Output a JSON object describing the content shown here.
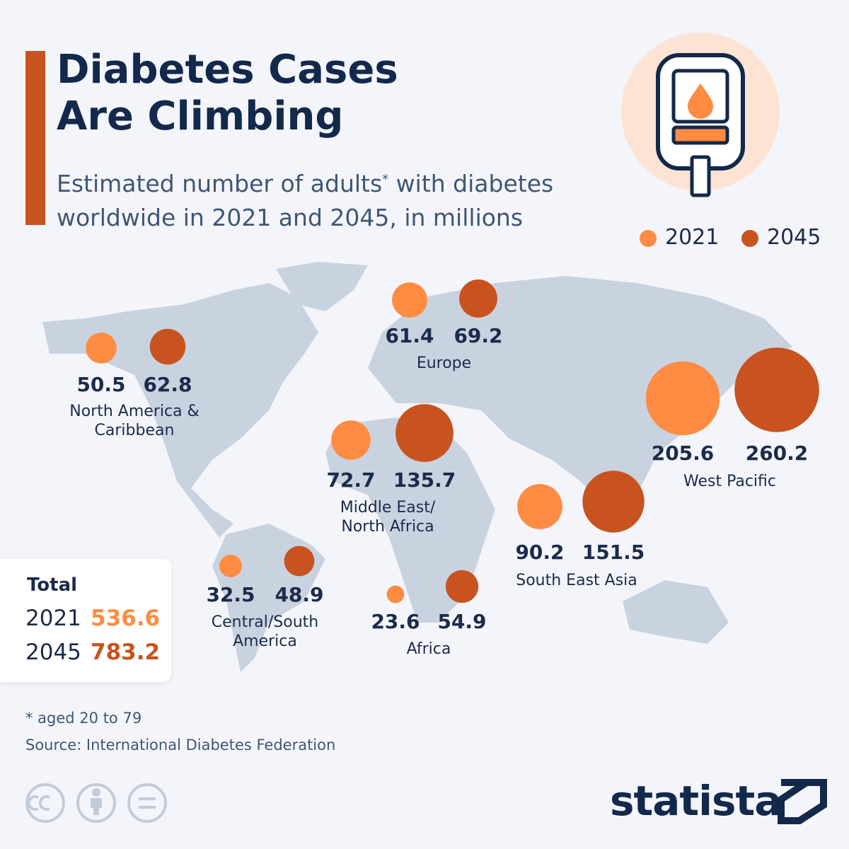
{
  "chart_data": {
    "type": "bubble",
    "title": "Diabetes Cases Are Climbing",
    "subtitle_before": "Estimated number of adults",
    "subtitle_mark": "*",
    "subtitle_after": "with diabetes worldwide in 2021 and 2045, in millions",
    "categories": [
      "North America & Caribbean",
      "Europe",
      "Middle East/ North Africa",
      "West Pacific",
      "South East Asia",
      "Central/South America",
      "Africa"
    ],
    "series": [
      {
        "name": "2021",
        "color": "#ff8c42",
        "values": [
          50.5,
          61.4,
          72.7,
          205.6,
          90.2,
          32.5,
          23.6
        ]
      },
      {
        "name": "2045",
        "color": "#c8531f",
        "values": [
          62.8,
          69.2,
          135.7,
          260.2,
          151.5,
          48.9,
          54.9
        ]
      }
    ],
    "totals": {
      "title": "Total",
      "values": [
        536.6,
        783.2
      ]
    },
    "footnote": "* aged 20 to 79",
    "source": "Source: International Diabetes Federation",
    "brand": "statista"
  }
}
